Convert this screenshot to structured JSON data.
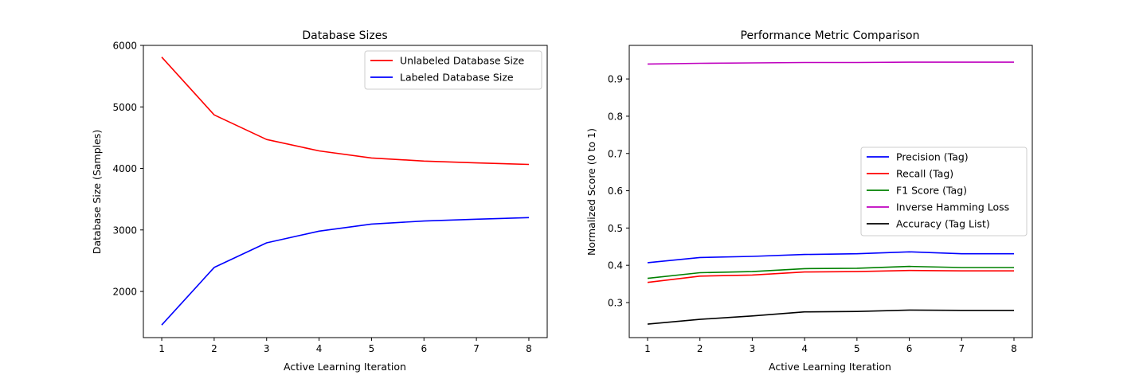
{
  "chart_data": [
    {
      "type": "line",
      "title": "Database Sizes",
      "xlabel": "Active Learning Iteration",
      "ylabel": "Database Size (Samples)",
      "x": [
        1,
        2,
        3,
        4,
        5,
        6,
        7,
        8
      ],
      "xlim": [
        0.65,
        8.35
      ],
      "ylim": [
        1250,
        6000
      ],
      "xticks": [
        1,
        2,
        3,
        4,
        5,
        6,
        7,
        8
      ],
      "yticks": [
        2000,
        3000,
        4000,
        5000,
        6000
      ],
      "legend_position": "upper-right",
      "grid": false,
      "series": [
        {
          "name": "Unlabeled Database Size",
          "color": "#ff0000",
          "values": [
            5810,
            4870,
            4470,
            4285,
            4170,
            4120,
            4090,
            4065
          ]
        },
        {
          "name": "Labeled Database Size",
          "color": "#0000ff",
          "values": [
            1455,
            2390,
            2790,
            2980,
            3095,
            3145,
            3175,
            3200
          ]
        }
      ]
    },
    {
      "type": "line",
      "title": "Performance Metric Comparison",
      "xlabel": "Active Learning Iteration",
      "ylabel": "Normalized Score (0 to 1)",
      "x": [
        1,
        2,
        3,
        4,
        5,
        6,
        7,
        8
      ],
      "xlim": [
        0.65,
        8.35
      ],
      "ylim": [
        0.206,
        0.99
      ],
      "xticks": [
        1,
        2,
        3,
        4,
        5,
        6,
        7,
        8
      ],
      "yticks": [
        0.3,
        0.4,
        0.5,
        0.6,
        0.7,
        0.8,
        0.9
      ],
      "legend_position": "center-right",
      "grid": false,
      "series": [
        {
          "name": "Precision (Tag)",
          "color": "#0000ff",
          "values": [
            0.407,
            0.421,
            0.424,
            0.429,
            0.431,
            0.436,
            0.431,
            0.431
          ]
        },
        {
          "name": "Recall (Tag)",
          "color": "#ff0000",
          "values": [
            0.354,
            0.371,
            0.374,
            0.382,
            0.383,
            0.386,
            0.385,
            0.385
          ]
        },
        {
          "name": "F1 Score (Tag)",
          "color": "#008000",
          "values": [
            0.365,
            0.38,
            0.383,
            0.391,
            0.392,
            0.397,
            0.394,
            0.394
          ]
        },
        {
          "name": "Inverse Hamming Loss",
          "color": "#bf00bf",
          "values": [
            0.94,
            0.942,
            0.943,
            0.944,
            0.944,
            0.945,
            0.945,
            0.945
          ]
        },
        {
          "name": "Accuracy (Tag List)",
          "color": "#000000",
          "values": [
            0.242,
            0.255,
            0.264,
            0.275,
            0.276,
            0.28,
            0.279,
            0.279
          ]
        }
      ]
    }
  ]
}
